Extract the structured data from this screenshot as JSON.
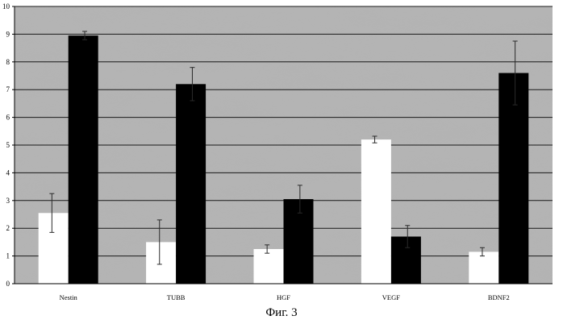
{
  "caption": "Фиг. 3",
  "chart_data": {
    "type": "bar",
    "categories": [
      "Nestin",
      "TUBB",
      "HGF",
      "VEGF",
      "BDNF2"
    ],
    "series": [
      {
        "color": "#ffffff",
        "values": [
          2.55,
          1.5,
          1.25,
          5.2,
          1.15
        ],
        "errors": [
          0.7,
          0.8,
          0.15,
          0.12,
          0.15
        ]
      },
      {
        "color": "#000000",
        "values": [
          8.95,
          7.2,
          3.05,
          1.7,
          7.6
        ],
        "errors": [
          0.15,
          0.6,
          0.5,
          0.4,
          1.15
        ]
      }
    ],
    "yticks": [
      "0",
      "1",
      "2",
      "3",
      "4",
      "5",
      "6",
      "7",
      "8",
      "9",
      "10"
    ],
    "ylim": [
      0,
      10
    ],
    "grid": true,
    "background": "#b4b4b4"
  }
}
